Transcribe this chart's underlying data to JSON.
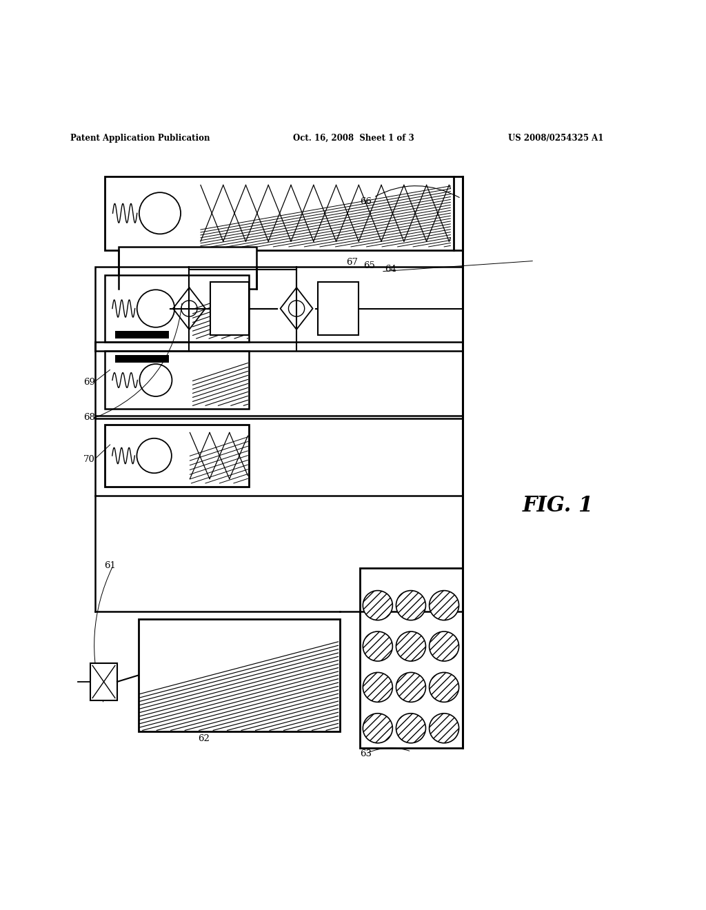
{
  "header_left": "Patent Application Publication",
  "header_mid": "Oct. 16, 2008  Sheet 1 of 3",
  "header_right": "US 2008/0254325 A1",
  "fig_label": "FIG. 1",
  "bg_color": "#ffffff",
  "line_color": "#000000",
  "line_width": 1.5
}
